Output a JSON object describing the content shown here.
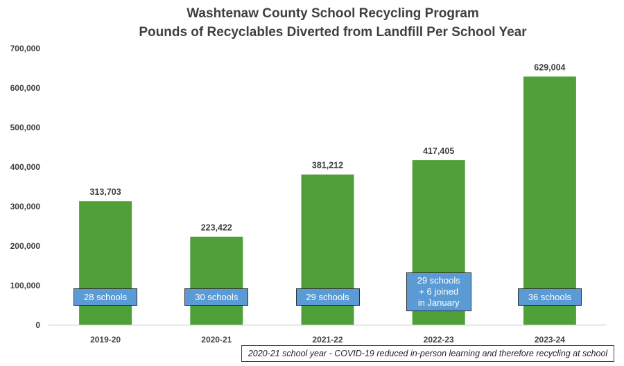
{
  "chart_data": {
    "type": "bar",
    "title": "Washtenaw County School Recycling Program",
    "subtitle": "Pounds of Recyclables Diverted from Landfill Per School Year",
    "categories": [
      "2019-20",
      "2020-21",
      "2021-22",
      "2022-23",
      "2023-24"
    ],
    "values": [
      313703,
      223422,
      381212,
      417405,
      629004
    ],
    "data_labels": [
      "313,703",
      "223,422",
      "381,212",
      "417,405",
      "629,004"
    ],
    "annotations": [
      "28 schools",
      "30 schools",
      "29 schools",
      "29 schools\n+ 6 joined\nin January",
      "36 schools"
    ],
    "ylim": [
      0,
      700000
    ],
    "yticks": [
      0,
      100000,
      200000,
      300000,
      400000,
      500000,
      600000,
      700000
    ],
    "ytick_labels": [
      "0",
      "100,000",
      "200,000",
      "300,000",
      "400,000",
      "500,000",
      "600,000",
      "700,000"
    ],
    "xlabel": "",
    "ylabel": "",
    "grid": false,
    "bar_color": "#50a03a",
    "annotation_color": "#5b9bd5",
    "footnote": "2020-21 school year - COVID-19 reduced in-person learning and therefore recycling at school"
  }
}
